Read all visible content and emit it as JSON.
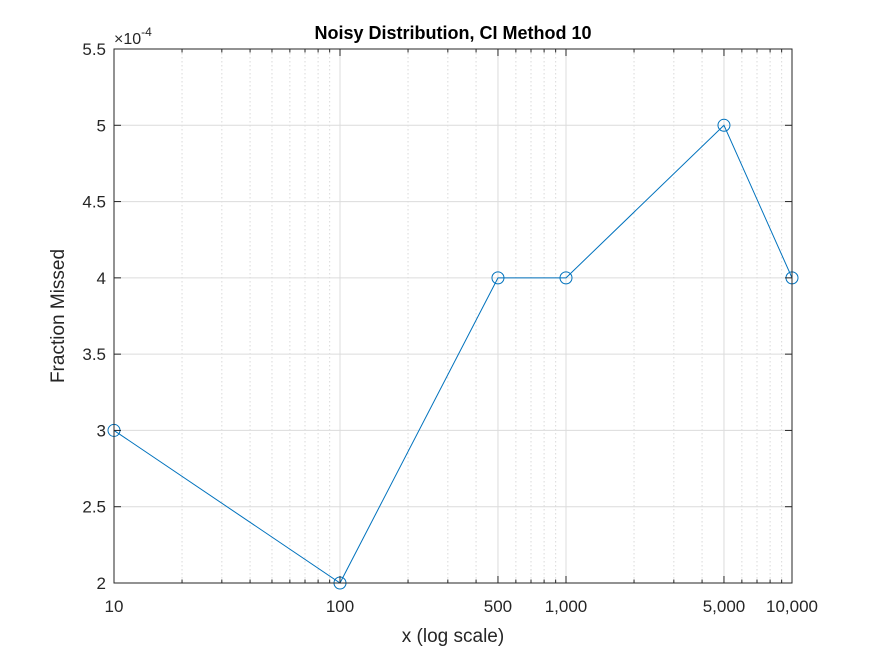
{
  "chart_data": {
    "type": "line",
    "title": "Noisy Distribution, CI Method 10",
    "xlabel": "x (log scale)",
    "ylabel": "Fraction Missed",
    "xscale": "log",
    "xlim": [
      10,
      10000
    ],
    "ylim": [
      0.0002,
      0.00055
    ],
    "xticks": [
      10,
      100,
      500,
      1000,
      5000,
      10000
    ],
    "xtick_labels": [
      "10",
      "100",
      "500",
      "1,000",
      "5,000",
      "10,000"
    ],
    "yticks": [
      0.0002,
      0.00025,
      0.0003,
      0.00035,
      0.0004,
      0.00045,
      0.0005,
      0.00055
    ],
    "ytick_labels": [
      "2",
      "2.5",
      "3",
      "3.5",
      "4",
      "4.5",
      "5",
      "5.5"
    ],
    "y_exponent_label": "×10",
    "y_exponent_power": "-4",
    "grid": true,
    "marker": "circle",
    "series": [
      {
        "color": "#0072bd",
        "x": [
          10,
          100,
          500,
          1000,
          5000,
          10000
        ],
        "y": [
          0.0003,
          0.0002,
          0.0004,
          0.0004,
          0.0005,
          0.0004
        ]
      }
    ]
  }
}
